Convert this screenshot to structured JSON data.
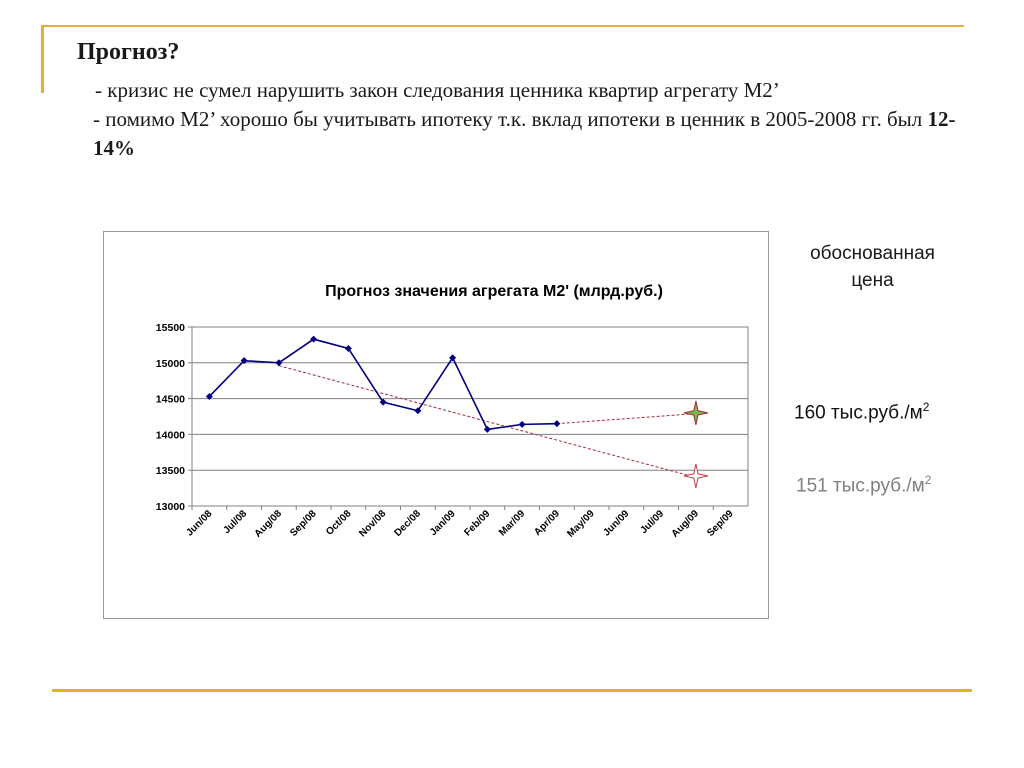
{
  "slide": {
    "title": "Прогноз?",
    "bullet1": "- кризис не сумел нарушить закон следования ценника квартир агрегату М2’",
    "bullet2_text": "- помимо М2’ хорошо бы учитывать ипотеку т.к. вклад ипотеки в ценник в 2005-2008 гг. был ",
    "bullet2_bold": "12-14%"
  },
  "side": {
    "justified_label": "обоснованная цена",
    "price1_text": "160 тыс.руб./м",
    "price1_sup": "2",
    "price2_text": "151 тыс.руб./м",
    "price2_sup": "2"
  },
  "colors": {
    "accent": "#e0b038",
    "series": "#000080",
    "trend": "#a0303a",
    "star_green": "#7ab850",
    "star_red": "#c24040"
  },
  "chart_data": {
    "type": "line",
    "title": "Прогноз значения агрегата М2' (млрд.руб.)",
    "categories": [
      "Jun/08",
      "Jul/08",
      "Aug/08",
      "Sep/08",
      "Oct/08",
      "Nov/08",
      "Dec/08",
      "Jan/09",
      "Feb/09",
      "Mar/09",
      "Apr/09",
      "May/09",
      "Jun/09",
      "Jul/09",
      "Aug/09",
      "Sep/09"
    ],
    "series": [
      {
        "values": [
          14530,
          15030,
          15000,
          15330,
          15200,
          14450,
          14330,
          15070,
          14070,
          14140,
          14150,
          null,
          null,
          null,
          null,
          null
        ]
      }
    ],
    "forecast_lines": [
      {
        "style": "dashed",
        "points": [
          [
            "Aug/08",
            14960
          ],
          [
            "Aug/09",
            13400
          ]
        ]
      },
      {
        "style": "dashed",
        "points": [
          [
            "Apr/09",
            14150
          ],
          [
            "Aug/09",
            14290
          ]
        ]
      }
    ],
    "forecast_markers": [
      {
        "category": "Aug/09",
        "value": 14300,
        "color": "green",
        "shape": "star"
      },
      {
        "category": "Aug/09",
        "value": 13420,
        "color": "red",
        "shape": "star"
      }
    ],
    "yticks": [
      13000,
      13500,
      14000,
      14500,
      15000,
      15500
    ],
    "ylim": [
      13000,
      15500
    ],
    "grid": true,
    "legend": "none"
  }
}
